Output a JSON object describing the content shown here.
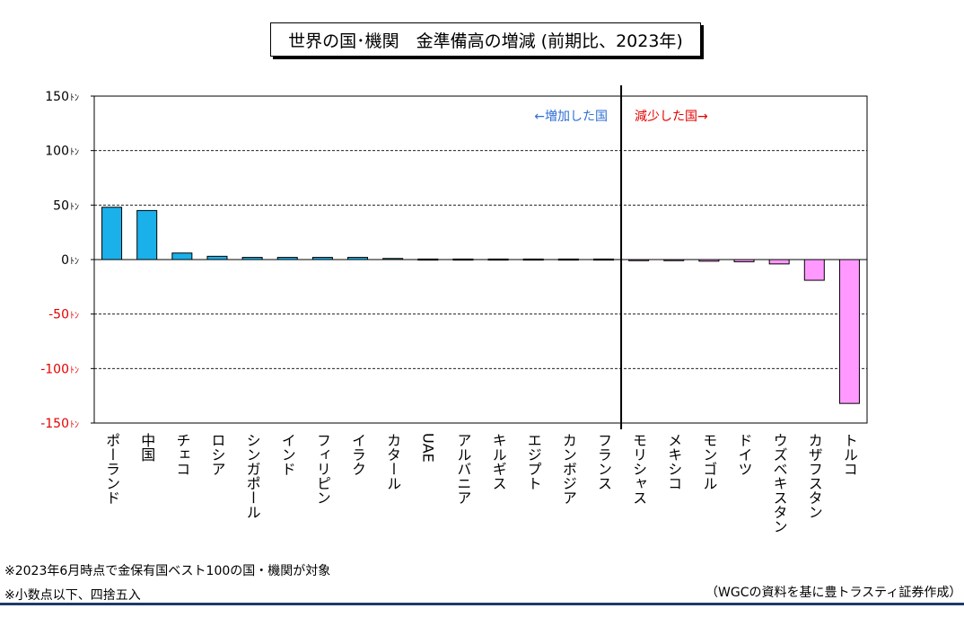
{
  "chart_data": {
    "type": "bar",
    "title": "世界の国･機関　金準備高の増減 (前期比、2023年)",
    "unit": "ﾄﾝ",
    "ylim": [
      -150,
      150
    ],
    "yticks": [
      150,
      100,
      50,
      0,
      -50,
      -100,
      -150
    ],
    "grid": true,
    "categories": [
      "ポーランド",
      "中国",
      "チェコ",
      "ロシア",
      "シンガポール",
      "インド",
      "フィリピン",
      "イラク",
      "カタール",
      "UAE",
      "アルバニア",
      "キルギス",
      "エジプト",
      "カンボジア",
      "フランス",
      "モリシャス",
      "メキシコ",
      "モンゴル",
      "ドイツ",
      "ウズベキスタン",
      "カザフスタン",
      "トルコ"
    ],
    "values": [
      48,
      45,
      6,
      3,
      2,
      2,
      2,
      2,
      1,
      0.5,
      0.5,
      0.5,
      0.5,
      0.5,
      0.5,
      -0.5,
      -0.5,
      -1.5,
      -2,
      -4,
      -19,
      -132
    ],
    "split_after_index": 14,
    "annotations": {
      "increase": "←増加した国",
      "decrease": "減少した国→"
    },
    "colors": {
      "positive": "#1ab0ea",
      "negative": "#ff99ff",
      "negative_tick": "#e60000",
      "increase_text": "#2f6fd6",
      "decrease_text": "#e60000"
    }
  },
  "notes": {
    "note1": "※2023年6月時点で金保有国ベスト100の国・機関が対象",
    "note2": "※小数点以下、四捨五入",
    "source": "（WGCの資料を基に豊トラスティ証券作成）"
  }
}
